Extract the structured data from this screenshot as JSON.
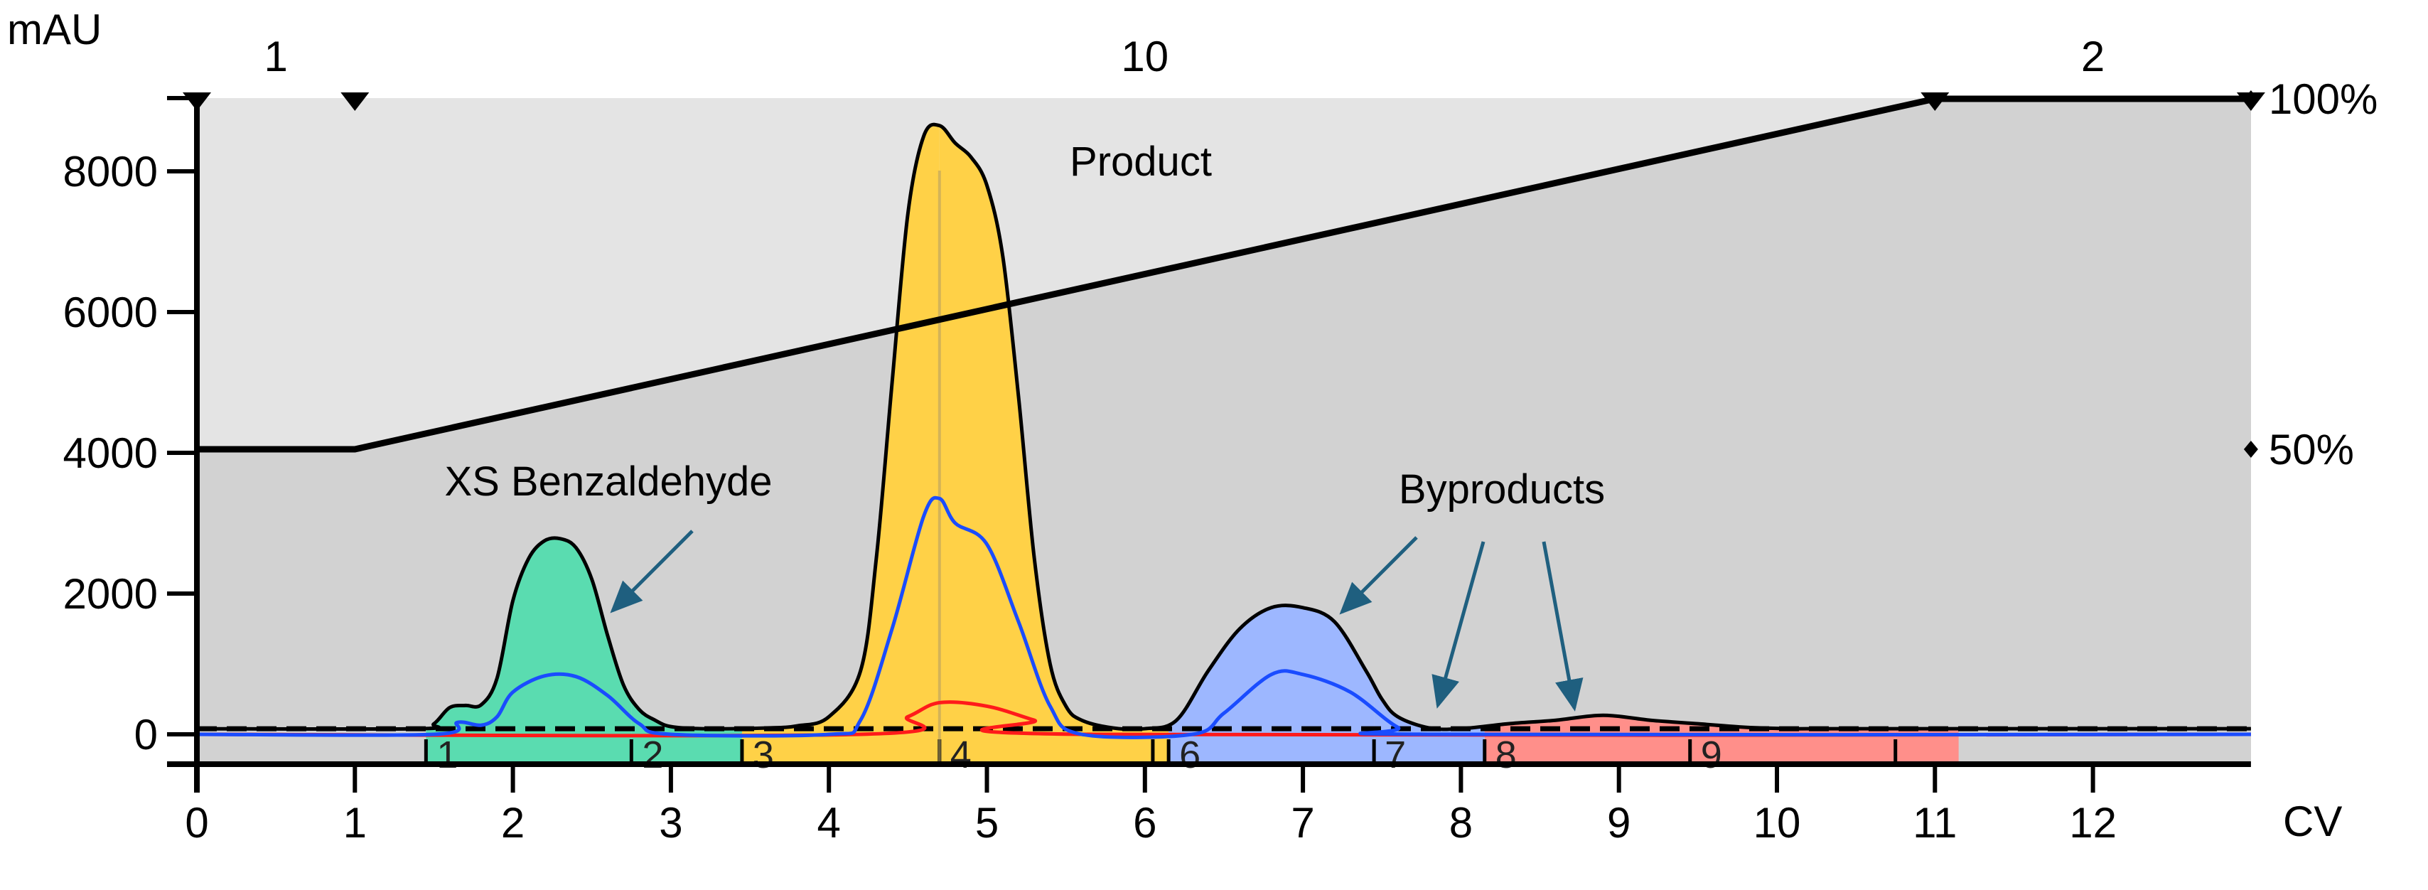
{
  "chart_data": {
    "type": "line",
    "ylabel": "mAU",
    "xlabel": "CV",
    "xlim": [
      0,
      13
    ],
    "ylim": [
      -420,
      9000
    ],
    "x_ticks": [
      "0",
      "1",
      "2",
      "3",
      "4",
      "5",
      "6",
      "7",
      "8",
      "9",
      "10",
      "11",
      "12"
    ],
    "y_ticks": [
      "0",
      "2000",
      "4000",
      "6000",
      "8000"
    ],
    "right_axis_ticks": [
      "50%",
      "100%"
    ],
    "top_labels": [
      {
        "x": 0.5,
        "text": "1"
      },
      {
        "x": 6,
        "text": "10"
      },
      {
        "x": 12,
        "text": "2"
      }
    ],
    "top_markers_x": [
      0,
      1,
      11,
      13
    ],
    "gradient_percent": {
      "x": [
        0,
        1,
        11,
        13
      ],
      "y": [
        50,
        50,
        100,
        100
      ]
    },
    "baseline_level": 80,
    "series": [
      {
        "color": "#000000",
        "x": [
          0,
          1.4,
          1.5,
          1.6,
          1.7,
          1.8,
          1.9,
          2.0,
          2.1,
          2.2,
          2.3,
          2.4,
          2.5,
          2.6,
          2.7,
          2.8,
          2.9,
          3.0,
          3.2,
          3.6,
          3.8,
          4.0,
          4.2,
          4.3,
          4.4,
          4.5,
          4.6,
          4.7,
          4.8,
          4.9,
          5.0,
          5.1,
          5.2,
          5.3,
          5.4,
          5.5,
          5.6,
          5.8,
          6.0,
          6.2,
          6.4,
          6.6,
          6.8,
          7.0,
          7.2,
          7.4,
          7.5,
          7.6,
          7.8,
          8.0,
          8.3,
          8.6,
          8.9,
          9.2,
          9.5,
          9.8,
          10.1,
          10.4,
          13
        ],
        "y": [
          80,
          80,
          150,
          380,
          410,
          420,
          800,
          1900,
          2500,
          2750,
          2780,
          2650,
          2200,
          1400,
          700,
          350,
          200,
          110,
          80,
          90,
          120,
          250,
          900,
          2500,
          5000,
          7400,
          8500,
          8650,
          8400,
          8200,
          7800,
          6800,
          4800,
          2500,
          1000,
          400,
          200,
          90,
          80,
          200,
          900,
          1500,
          1800,
          1800,
          1600,
          900,
          500,
          250,
          90,
          80,
          150,
          200,
          270,
          200,
          150,
          100,
          80,
          80,
          80
        ]
      },
      {
        "color": "#1a4cff",
        "x": [
          0,
          1.5,
          1.65,
          1.8,
          1.9,
          2.0,
          2.2,
          2.4,
          2.6,
          2.8,
          3.0,
          4.0,
          4.2,
          4.4,
          4.6,
          4.7,
          4.8,
          5.0,
          5.2,
          5.4,
          5.6,
          6.3,
          6.5,
          6.8,
          7.0,
          7.3,
          7.6,
          7.8,
          13
        ],
        "y": [
          0,
          0,
          170,
          130,
          250,
          600,
          830,
          820,
          550,
          150,
          0,
          0,
          200,
          1500,
          3100,
          3350,
          3000,
          2700,
          1600,
          400,
          0,
          0,
          300,
          850,
          850,
          600,
          100,
          0,
          0
        ]
      },
      {
        "color": "#ff1a1a",
        "x": [
          0,
          4.2,
          4.5,
          4.7,
          5.0,
          5.3,
          5.6,
          13
        ],
        "y": [
          0,
          0,
          250,
          450,
          400,
          200,
          0,
          0
        ]
      }
    ],
    "fractions": [
      {
        "label": "1",
        "start": 1.45,
        "end": 2.75,
        "color": "#5adcb0"
      },
      {
        "label": "2",
        "start": 2.75,
        "end": 3.45,
        "color": "#5adcb0"
      },
      {
        "label": "3",
        "start": 3.45,
        "end": 4.7,
        "color": "#ffd147"
      },
      {
        "label": "4",
        "start": 4.7,
        "end": 6.05,
        "color": "#ffd147"
      },
      {
        "label": "",
        "start": 6.05,
        "end": 6.15,
        "color": "#ffd147"
      },
      {
        "label": "6",
        "start": 6.15,
        "end": 7.45,
        "color": "#9db7ff"
      },
      {
        "label": "7",
        "start": 7.45,
        "end": 8.15,
        "color": "#9db7ff"
      },
      {
        "label": "8",
        "start": 8.15,
        "end": 9.45,
        "color": "#ff8f8a"
      },
      {
        "label": "9",
        "start": 9.45,
        "end": 10.75,
        "color": "#ff8f8a"
      },
      {
        "label": "",
        "start": 10.75,
        "end": 11.15,
        "color": "#ff8f8a"
      }
    ],
    "annotations": {
      "benzaldehyde": "XS Benzaldehyde",
      "product": "Product",
      "byproducts": "Byproducts"
    },
    "colors": {
      "plot_bg_lower": "#d2d2d2",
      "plot_bg_upper": "#e4e4e4",
      "arrow": "#1f5f7f"
    }
  }
}
